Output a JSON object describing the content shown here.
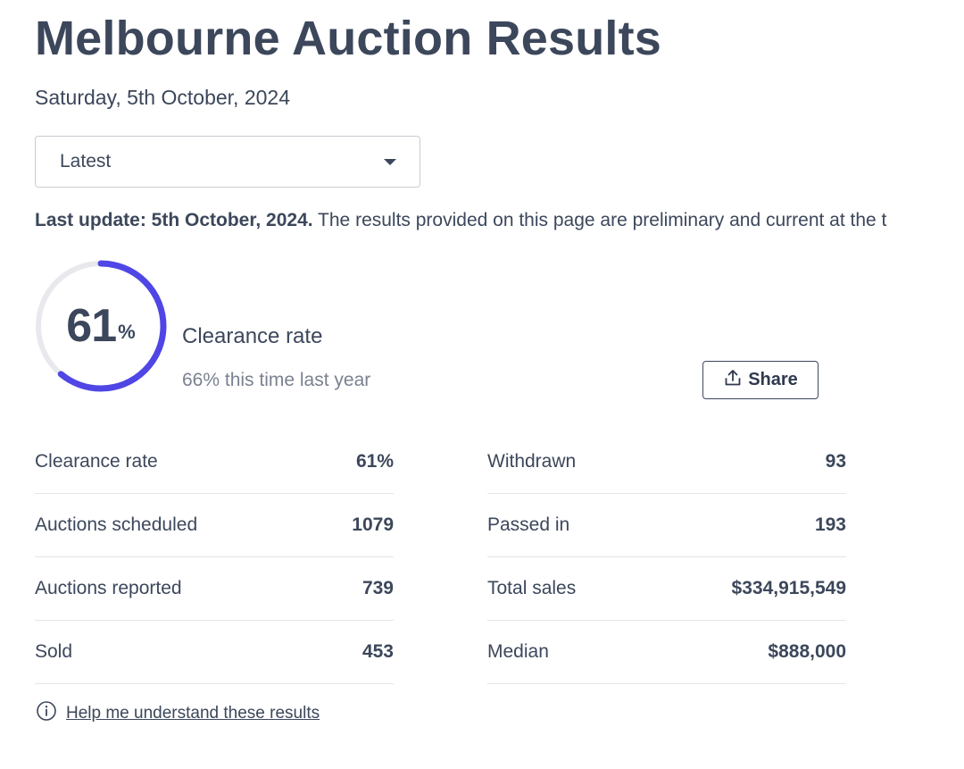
{
  "header": {
    "title": "Melbourne Auction Results",
    "date": "Saturday, 5th October, 2024"
  },
  "period_select": {
    "value": "Latest"
  },
  "update_notice": {
    "bold": "Last update: 5th October, 2024.",
    "text": " The results provided on this page are preliminary and current at the t"
  },
  "clearance": {
    "value": "61",
    "unit": "%",
    "fraction": 0.61,
    "label": "Clearance rate",
    "last_year": "66% this time last year",
    "accent_color": "#4f46e5",
    "track_color": "#e8e9ec"
  },
  "share_button": {
    "label": "Share",
    "icon": "share-upload-icon"
  },
  "stats_left": [
    {
      "label": "Clearance rate",
      "value": "61%"
    },
    {
      "label": "Auctions scheduled",
      "value": "1079"
    },
    {
      "label": "Auctions reported",
      "value": "739"
    },
    {
      "label": "Sold",
      "value": "453"
    }
  ],
  "stats_right": [
    {
      "label": "Withdrawn",
      "value": "93"
    },
    {
      "label": "Passed in",
      "value": "193"
    },
    {
      "label": "Total sales",
      "value": "$334,915,549"
    },
    {
      "label": "Median",
      "value": "$888,000"
    }
  ],
  "help_link": {
    "label": "Help me understand these results",
    "icon": "info-circle-icon"
  }
}
